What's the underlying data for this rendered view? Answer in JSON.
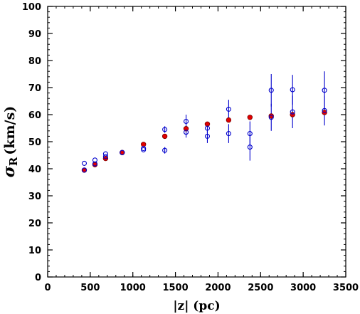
{
  "chart_data": {
    "type": "scatter",
    "x_axis": {
      "label": "|z| (pc)",
      "range": [
        0,
        3500
      ],
      "major_ticks": [
        0,
        500,
        1000,
        1500,
        2000,
        2500,
        3000,
        3500
      ],
      "minor_step": 100
    },
    "y_axis": {
      "label_symbol": "σ",
      "label_subscript": "R",
      "label_units": "(km/s)",
      "range": [
        0,
        100
      ],
      "major_ticks": [
        0,
        10,
        20,
        30,
        40,
        50,
        60,
        70,
        80,
        90,
        100
      ],
      "minor_step": 2
    },
    "grid": false,
    "series": [
      {
        "style": "filled-red",
        "color": "#e00000",
        "edge_color": "#7a0000",
        "points": [
          {
            "x": 430,
            "y": 39.5
          },
          {
            "x": 555,
            "y": 41.5
          },
          {
            "x": 680,
            "y": 43.8
          },
          {
            "x": 875,
            "y": 46.0
          },
          {
            "x": 1125,
            "y": 49.0
          },
          {
            "x": 1375,
            "y": 52.0
          },
          {
            "x": 1625,
            "y": 54.8
          },
          {
            "x": 1875,
            "y": 56.5
          },
          {
            "x": 2125,
            "y": 58.0
          },
          {
            "x": 2375,
            "y": 59.0
          },
          {
            "x": 2625,
            "y": 59.5
          },
          {
            "x": 2875,
            "y": 60.0
          },
          {
            "x": 3250,
            "y": 60.8
          }
        ]
      },
      {
        "style": "open-blue",
        "color": "#0000cc",
        "points": [
          {
            "x": 430,
            "y": 42.0
          },
          {
            "x": 430,
            "y": 39.5
          },
          {
            "x": 555,
            "y": 43.2
          },
          {
            "x": 555,
            "y": 41.8
          },
          {
            "x": 680,
            "y": 45.5
          },
          {
            "x": 680,
            "y": 44.5
          },
          {
            "x": 875,
            "y": 46.0
          },
          {
            "x": 1125,
            "y": 47.5
          },
          {
            "x": 1125,
            "y": 47.0
          },
          {
            "x": 1375,
            "y": 54.5,
            "err": 1.2
          },
          {
            "x": 1375,
            "y": 46.8,
            "err": 1.2
          },
          {
            "x": 1625,
            "y": 57.5,
            "err": 2.5
          },
          {
            "x": 1625,
            "y": 53.5,
            "err": 2.0
          },
          {
            "x": 1875,
            "y": 55.0,
            "err": 2.0
          },
          {
            "x": 1875,
            "y": 52.0,
            "err": 2.5
          },
          {
            "x": 2125,
            "y": 62.0,
            "err": 3.5
          },
          {
            "x": 2125,
            "y": 53.0,
            "err": 3.5
          },
          {
            "x": 2375,
            "y": 53.0,
            "err": 4.5
          },
          {
            "x": 2375,
            "y": 48.0,
            "err": 5.0
          },
          {
            "x": 2625,
            "y": 69.0,
            "err": 6.0
          },
          {
            "x": 2625,
            "y": 59.0,
            "err": 5.0
          },
          {
            "x": 2875,
            "y": 69.2,
            "err": 5.5
          },
          {
            "x": 2875,
            "y": 61.0,
            "err": 6.0
          },
          {
            "x": 3250,
            "y": 69.0,
            "err": 7.0
          },
          {
            "x": 3250,
            "y": 61.5,
            "err": 5.5
          }
        ]
      }
    ]
  }
}
